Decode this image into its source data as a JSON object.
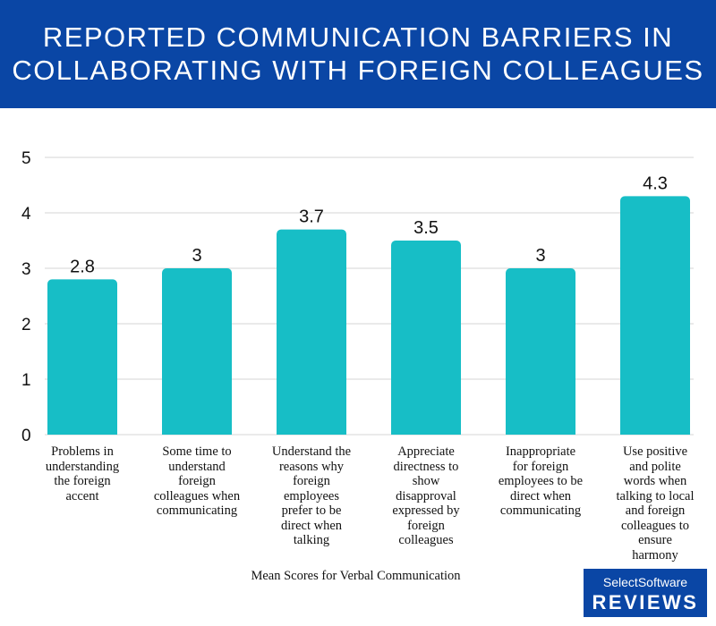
{
  "header": {
    "title_line1": "REPORTED COMMUNICATION BARRIERS IN",
    "title_line2": "COLLABORATING WITH FOREIGN COLLEAGUES",
    "background_color": "#0a46a5"
  },
  "chart_data": {
    "type": "bar",
    "title": "REPORTED COMMUNICATION BARRIERS IN COLLABORATING WITH FOREIGN COLLEAGUES",
    "xlabel": "Mean Scores for Verbal Communication",
    "ylabel": "",
    "ylim": [
      0,
      5
    ],
    "yticks": [
      "0",
      "1",
      "2",
      "3",
      "4",
      "5"
    ],
    "grid": true,
    "bar_color": "#17bec6",
    "categories": [
      [
        "Problems in",
        "understanding",
        "the foreign",
        "accent"
      ],
      [
        "Some time to",
        "understand",
        "foreign",
        "colleagues when",
        "communicating"
      ],
      [
        "Understand the",
        "reasons why",
        "foreign",
        "employees",
        "prefer to be",
        "direct when",
        "talking"
      ],
      [
        "Appreciate",
        "directness to",
        "show",
        "disapproval",
        "expressed by",
        "foreign",
        "colleagues"
      ],
      [
        "Inappropriate",
        "for foreign",
        "employees to be",
        "direct when",
        "communicating"
      ],
      [
        "Use positive",
        "and polite",
        "words when",
        "talking to local",
        "and foreign",
        "colleagues to",
        "ensure",
        "harmony"
      ]
    ],
    "values": [
      2.8,
      3,
      3.7,
      3.5,
      3,
      4.3
    ],
    "value_labels": [
      "2.8",
      "3",
      "3.7",
      "3.5",
      "3",
      "4.3"
    ]
  },
  "logo": {
    "line1": "SelectSoftware",
    "line2": "REVIEWS"
  }
}
